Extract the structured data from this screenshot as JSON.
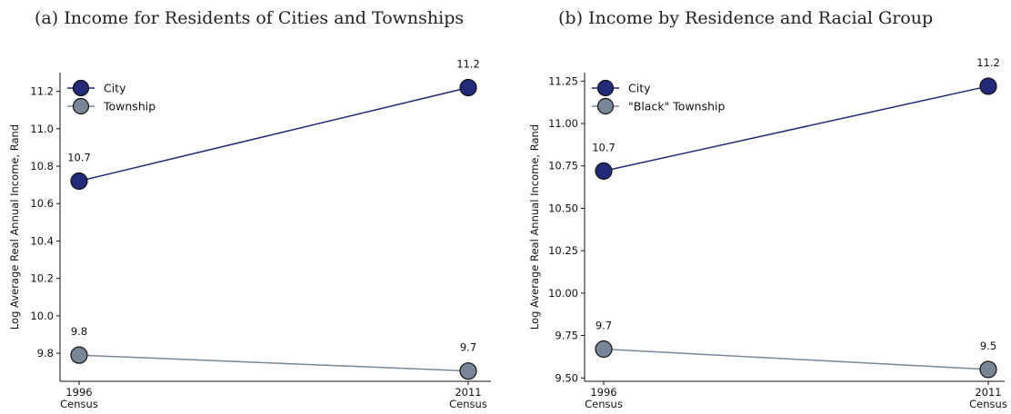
{
  "colors": {
    "city": "#232a7a",
    "township": "#778798",
    "edge": "#111111"
  },
  "chart_data": [
    {
      "type": "line",
      "title": "(a) Income for Residents of Cities and Townships",
      "ylabel": "Log Average Real Annual Income, Rand",
      "xlabel": "",
      "categories": [
        "1996\nCensus",
        "2011\nCensus"
      ],
      "ylim": [
        9.65,
        11.3
      ],
      "yticks": [
        9.8,
        10.0,
        10.2,
        10.4,
        10.6,
        10.8,
        11.0,
        11.2
      ],
      "ytick_labels": [
        "9.8",
        "10.0",
        "10.2",
        "10.4",
        "10.6",
        "10.8",
        "11.0",
        "11.2"
      ],
      "legend_position": "top-left",
      "grid": false,
      "series": [
        {
          "name": "City",
          "color_key": "city",
          "values": [
            10.72,
            11.22
          ],
          "labels": [
            "10.7",
            "11.2"
          ]
        },
        {
          "name": "Township",
          "color_key": "township",
          "values": [
            9.79,
            9.705
          ],
          "labels": [
            "9.8",
            "9.7"
          ]
        }
      ]
    },
    {
      "type": "line",
      "title": "(b) Income by Residence and Racial Group",
      "ylabel": "Log Average Real Annual Income, Rand",
      "xlabel": "",
      "categories": [
        "1996\nCensus",
        "2011\nCensus"
      ],
      "ylim": [
        9.48,
        11.3
      ],
      "yticks": [
        9.5,
        9.75,
        10.0,
        10.25,
        10.5,
        10.75,
        11.0,
        11.25
      ],
      "ytick_labels": [
        "9.50",
        "9.75",
        "10.00",
        "10.25",
        "10.50",
        "10.75",
        "11.00",
        "11.25"
      ],
      "legend_position": "top-left",
      "grid": false,
      "series": [
        {
          "name": "City",
          "color_key": "city",
          "values": [
            10.72,
            11.22
          ],
          "labels": [
            "10.7",
            "11.2"
          ]
        },
        {
          "name": "\"Black\" Township",
          "color_key": "township",
          "values": [
            9.67,
            9.55
          ],
          "labels": [
            "9.7",
            "9.5"
          ]
        }
      ]
    }
  ]
}
